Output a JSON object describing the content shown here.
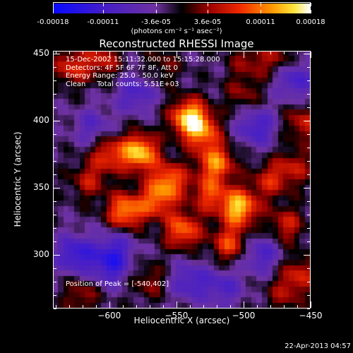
{
  "chart_data": {
    "type": "heatmap",
    "title": "Reconstructed RHESSI Image",
    "xlabel": "Heliocentric X (arcsec)",
    "ylabel": "Heliocentric Y (arcsec)",
    "xlim": [
      -642,
      -450
    ],
    "ylim": [
      260,
      452
    ],
    "x_ticks": [
      -600,
      -550,
      -500,
      -450
    ],
    "y_ticks": [
      300,
      350,
      400,
      450
    ],
    "colorbar": {
      "colormap": "red-temperature with negative blue",
      "range": [
        -0.00018,
        0.00018
      ],
      "ticks": [
        "-0.00018",
        "-0.00011",
        "-3.6e-05",
        "3.6e-05",
        "0.00011",
        "0.00018"
      ],
      "tick_values": [
        -0.00018,
        -0.00011,
        -3.6e-05,
        3.6e-05,
        0.00011,
        0.00018
      ],
      "unit_label": "(photons cm⁻² s⁻¹ asec⁻²)"
    },
    "peak": {
      "x": -540,
      "y": 402
    },
    "bright_blobs": [
      {
        "x": -540,
        "y": 402,
        "amp": 1.0
      },
      {
        "x": -577,
        "y": 376,
        "amp": 0.95
      },
      {
        "x": -503,
        "y": 335,
        "amp": 0.95
      },
      {
        "x": -588,
        "y": 332,
        "amp": 0.8
      },
      {
        "x": -520,
        "y": 368,
        "amp": 0.75
      },
      {
        "x": -555,
        "y": 355,
        "amp": 0.7
      },
      {
        "x": -545,
        "y": 318,
        "amp": 0.7
      },
      {
        "x": -510,
        "y": 308,
        "amp": 0.6
      },
      {
        "x": -600,
        "y": 375,
        "amp": 0.55
      },
      {
        "x": -565,
        "y": 340,
        "amp": 0.6
      },
      {
        "x": -525,
        "y": 345,
        "amp": 0.55
      },
      {
        "x": -530,
        "y": 390,
        "amp": 0.6
      },
      {
        "x": -628,
        "y": 440,
        "amp": 0.5
      },
      {
        "x": -605,
        "y": 445,
        "amp": 0.45
      },
      {
        "x": -615,
        "y": 355,
        "amp": 0.4
      },
      {
        "x": -468,
        "y": 322,
        "amp": 0.45
      },
      {
        "x": -458,
        "y": 285,
        "amp": 0.45
      },
      {
        "x": -462,
        "y": 365,
        "amp": 0.4
      },
      {
        "x": -455,
        "y": 398,
        "amp": 0.45
      },
      {
        "x": -620,
        "y": 270,
        "amp": 0.35
      },
      {
        "x": -570,
        "y": 280,
        "amp": 0.3
      },
      {
        "x": -475,
        "y": 445,
        "amp": 0.35
      },
      {
        "x": -497,
        "y": 445,
        "amp": 0.3
      },
      {
        "x": -560,
        "y": 440,
        "amp": 0.25
      },
      {
        "x": -470,
        "y": 270,
        "amp": 0.3
      },
      {
        "x": -500,
        "y": 420,
        "amp": 0.3
      },
      {
        "x": -480,
        "y": 355,
        "amp": 0.45
      }
    ],
    "dark_blobs": [
      {
        "x": -625,
        "y": 300,
        "amp": 0.6
      },
      {
        "x": -600,
        "y": 290,
        "amp": 0.5
      },
      {
        "x": -490,
        "y": 395,
        "amp": 0.5
      },
      {
        "x": -462,
        "y": 430,
        "amp": 0.5
      },
      {
        "x": -540,
        "y": 280,
        "amp": 0.45
      },
      {
        "x": -580,
        "y": 420,
        "amp": 0.45
      },
      {
        "x": -595,
        "y": 305,
        "amp": 0.4
      },
      {
        "x": -515,
        "y": 275,
        "amp": 0.4
      },
      {
        "x": -612,
        "y": 395,
        "amp": 0.35
      },
      {
        "x": -487,
        "y": 300,
        "amp": 0.45
      }
    ]
  },
  "info": {
    "line1": "15-Dec-2002 15:11:32.000 to 15:15:28.000",
    "line2": "Detectors: 4F 5F 6F 7F 8F, Att 0",
    "line3": "Energy Range: 25.0 - 50.0 keV",
    "line4": "Clean     Total counts: 5.51E+03",
    "peak": "Position of Peak = [-540,402]"
  },
  "timestamp": "22-Apr-2013 04:57"
}
